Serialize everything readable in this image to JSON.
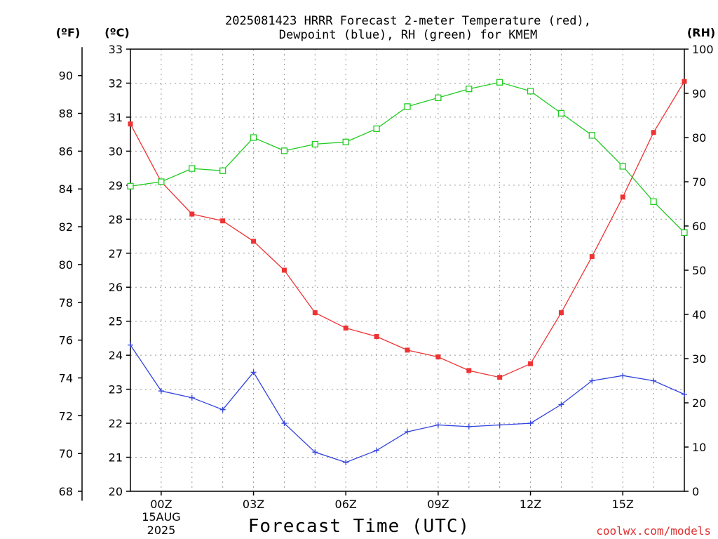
{
  "chart_data": {
    "type": "line",
    "title_line1": "2025081423 HRRR Forecast 2-meter Temperature (red),",
    "title_line2": "Dewpoint (blue), RH (green) for KMEM",
    "unit_f": "(ºF)",
    "unit_c": "(ºC)",
    "unit_rh": "(RH)",
    "xlabel": "Forecast Time (UTC)",
    "watermark": "coolwx.com/models",
    "date_labels": [
      "15AUG",
      "2025"
    ],
    "x_hours": [
      -1,
      0,
      1,
      2,
      3,
      4,
      5,
      6,
      7,
      8,
      9,
      10,
      11,
      12,
      13,
      14,
      15,
      16,
      17
    ],
    "x_ticks": [
      {
        "hour": 0,
        "label": "00Z"
      },
      {
        "hour": 3,
        "label": "03Z"
      },
      {
        "hour": 6,
        "label": "06Z"
      },
      {
        "hour": 9,
        "label": "09Z"
      },
      {
        "hour": 12,
        "label": "12Z"
      },
      {
        "hour": 15,
        "label": "15Z"
      }
    ],
    "xlim": [
      -1,
      17
    ],
    "celsius_ticks": [
      20,
      21,
      22,
      23,
      24,
      25,
      26,
      27,
      28,
      29,
      30,
      31,
      32,
      33
    ],
    "fahrenheit_ticks": [
      68,
      70,
      72,
      74,
      76,
      78,
      80,
      82,
      84,
      86,
      88,
      90
    ],
    "rh_ticks": [
      0,
      10,
      20,
      30,
      40,
      50,
      60,
      70,
      80,
      90,
      100
    ],
    "ylim_c": [
      20,
      33
    ],
    "ylim_rh": [
      0,
      100
    ],
    "series": [
      {
        "name": "Temperature",
        "axis": "celsius",
        "color": "#ee3333",
        "marker": "filled-square",
        "values": [
          30.8,
          29.1,
          28.15,
          27.95,
          27.35,
          26.5,
          25.25,
          24.8,
          24.55,
          24.15,
          23.95,
          23.55,
          23.35,
          23.75,
          25.25,
          26.9,
          28.65,
          30.55,
          32.05
        ]
      },
      {
        "name": "Dewpoint",
        "axis": "celsius",
        "color": "#3344dd",
        "marker": "plus",
        "values": [
          24.3,
          22.95,
          22.75,
          22.4,
          23.5,
          22.0,
          21.15,
          20.85,
          21.2,
          21.75,
          21.95,
          21.9,
          21.95,
          22.0,
          22.55,
          23.25,
          23.4,
          23.25,
          22.85
        ]
      },
      {
        "name": "RH",
        "axis": "rh",
        "color": "#22cc22",
        "marker": "open-square",
        "values": [
          69,
          70,
          73,
          72.5,
          80,
          77,
          78.5,
          79,
          82,
          87,
          89,
          91,
          92.5,
          90.5,
          85.5,
          80.5,
          73.5,
          65.5,
          58.5
        ]
      }
    ]
  }
}
